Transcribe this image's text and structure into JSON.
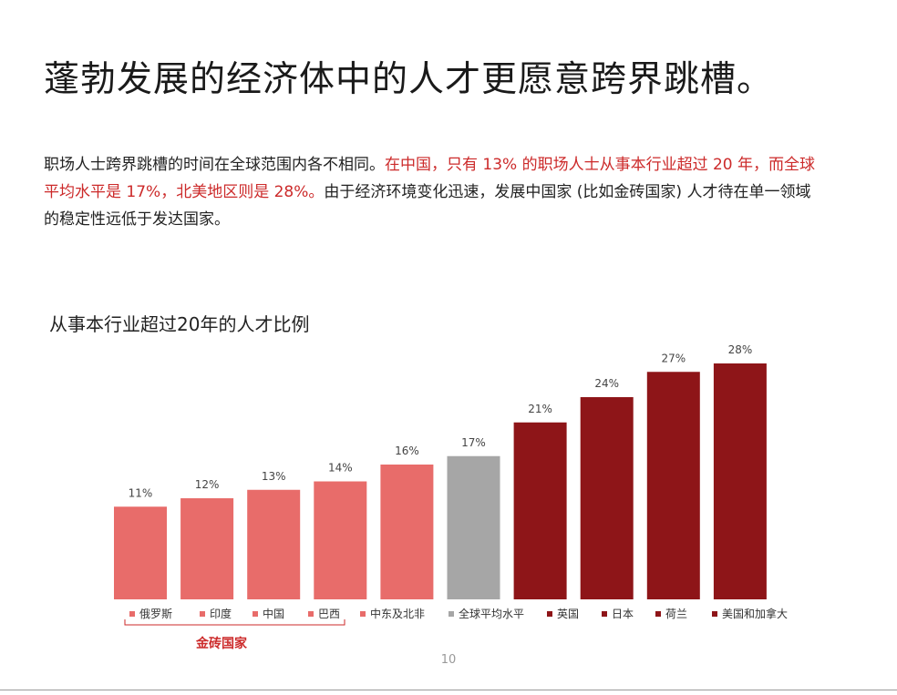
{
  "headline": "蓬勃发展的经济体中的人才更愿意跨界跳槽。",
  "intro": {
    "part1": "职场人士跨界跳槽的时间在全球范围内各不相同。",
    "highlight": "在中国，只有 13% 的职场人士从事本行业超过 20 年，而全球平均水平是 17%，北美地区则是 28%。",
    "part2": "由于经济环境变化迅速，发展中国家 (比如金砖国家) 人才待在单一领域的稳定性远低于发达国家。"
  },
  "chart_title": "从事本行业超过20年的人才比例",
  "chart_data": {
    "type": "bar",
    "categories": [
      "俄罗斯",
      "印度",
      "中国",
      "巴西",
      "中东及北非",
      "全球平均水平",
      "英国",
      "日本",
      "荷兰",
      "美国和加拿大"
    ],
    "values": [
      11,
      12,
      13,
      14,
      16,
      17,
      21,
      24,
      27,
      28
    ],
    "value_labels": [
      "11%",
      "12%",
      "13%",
      "14%",
      "16%",
      "17%",
      "21%",
      "24%",
      "27%",
      "28%"
    ],
    "colors": [
      "#e86c6a",
      "#e86c6a",
      "#e86c6a",
      "#e86c6a",
      "#e86c6a",
      "#a6a6a6",
      "#8e1518",
      "#8e1518",
      "#8e1518",
      "#8e1518"
    ],
    "ylim": [
      0,
      30
    ],
    "grid": false,
    "legend": "bottom"
  },
  "group_label": "金砖国家",
  "page_number": "10"
}
